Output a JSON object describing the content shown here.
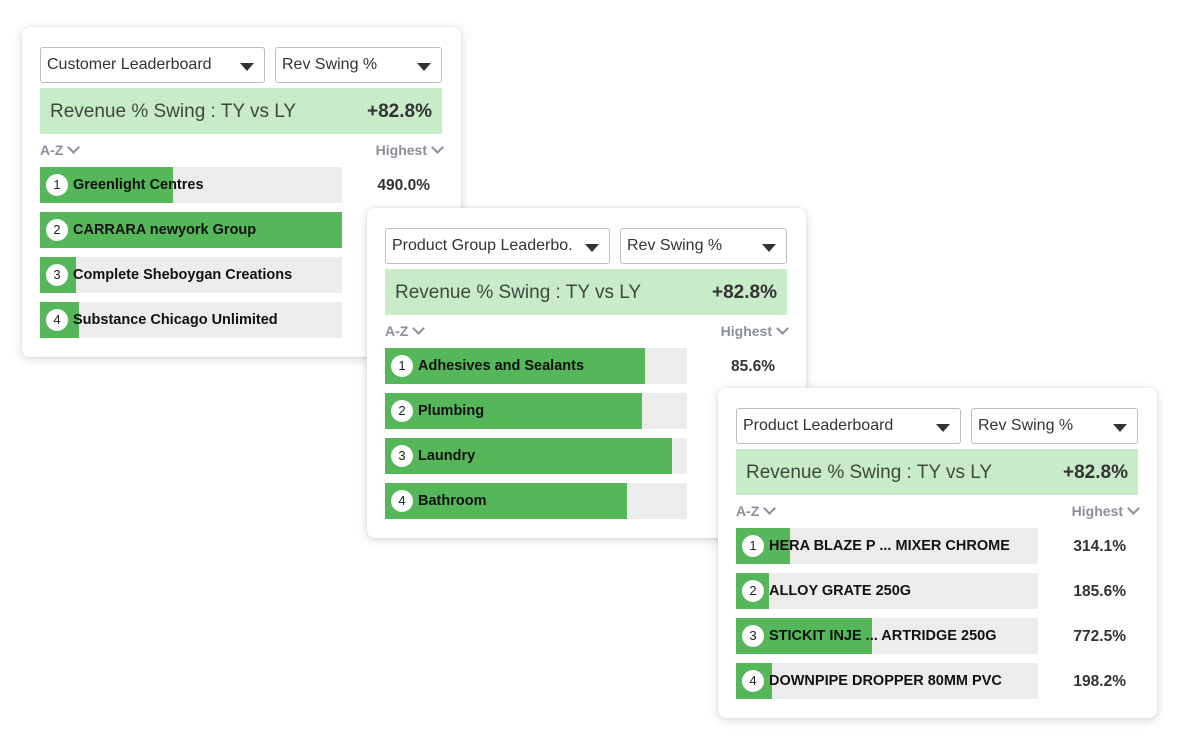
{
  "cards": [
    {
      "dropdown": "Customer Leaderboard",
      "metric": "Rev Swing %",
      "summary_label": "Revenue % Swing : TY vs LY",
      "summary_value": "+82.8%",
      "sort_left": "A-Z",
      "sort_right": "Highest",
      "rows": [
        {
          "rank": "1",
          "label": "Greenlight Centres",
          "value": "490.0%",
          "fill": 0.44
        },
        {
          "rank": "2",
          "label": "CARRARA newyork Group",
          "value": "",
          "fill": 1.0
        },
        {
          "rank": "3",
          "label": "Complete Sheboygan Creations",
          "value": "",
          "fill": 0.12
        },
        {
          "rank": "4",
          "label": "Substance Chicago Unlimited",
          "value": "",
          "fill": 0.13
        }
      ]
    },
    {
      "dropdown": "Product Group Leaderbo...",
      "metric": "Rev Swing %",
      "summary_label": "Revenue % Swing : TY vs LY",
      "summary_value": "+82.8%",
      "sort_left": "A-Z",
      "sort_right": "Highest",
      "rows": [
        {
          "rank": "1",
          "label": "Adhesives and Sealants",
          "value": "85.6%",
          "fill": 0.86
        },
        {
          "rank": "2",
          "label": "Plumbing",
          "value": "",
          "fill": 0.85
        },
        {
          "rank": "3",
          "label": "Laundry",
          "value": "",
          "fill": 0.95
        },
        {
          "rank": "4",
          "label": "Bathroom",
          "value": "",
          "fill": 0.8
        }
      ]
    },
    {
      "dropdown": "Product Leaderboard",
      "metric": "Rev Swing %",
      "summary_label": "Revenue % Swing : TY vs LY",
      "summary_value": "+82.8%",
      "sort_left": "A-Z",
      "sort_right": "Highest",
      "rows": [
        {
          "rank": "1",
          "label": "HERA BLAZE P ... MIXER CHROME",
          "value": "314.1%",
          "fill": 0.18
        },
        {
          "rank": "2",
          "label": "ALLOY GRATE 250G",
          "value": "185.6%",
          "fill": 0.11
        },
        {
          "rank": "3",
          "label": "STICKIT INJE ... ARTRIDGE 250G",
          "value": "772.5%",
          "fill": 0.45
        },
        {
          "rank": "4",
          "label": "DOWNPIPE DROPPER 80MM PVC",
          "value": "198.2%",
          "fill": 0.12
        }
      ]
    }
  ],
  "colors": {
    "bar_fill": "#55b75a",
    "bar_track": "#ececec",
    "summary_bg": "#c8ebc8"
  },
  "icons": {
    "dropdown": "caret-down-icon",
    "sort": "chevron-down-icon"
  }
}
